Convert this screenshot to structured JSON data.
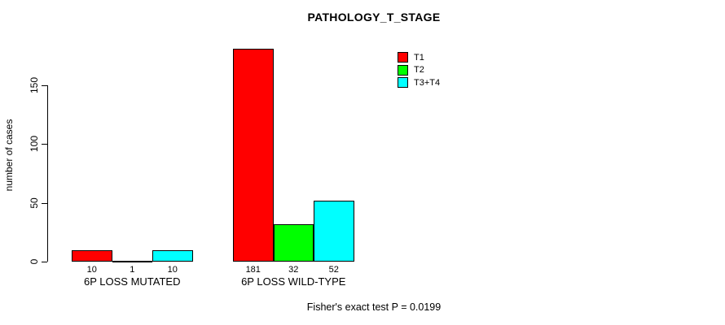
{
  "chart_data": {
    "type": "bar",
    "title": "PATHOLOGY_T_STAGE",
    "ylabel": "number of cases",
    "xlabel": "",
    "categories": [
      "6P LOSS MUTATED",
      "6P LOSS WILD-TYPE"
    ],
    "series": [
      {
        "name": "T1",
        "color": "#ff0000",
        "values": [
          10,
          181
        ]
      },
      {
        "name": "T2",
        "color": "#00ff00",
        "values": [
          1,
          32
        ]
      },
      {
        "name": "T3+T4",
        "color": "#00ffff",
        "values": [
          10,
          52
        ]
      }
    ],
    "yticks": [
      0,
      50,
      100,
      150
    ],
    "ylim": [
      0,
      150
    ],
    "grid": false,
    "legend_position": "top-right",
    "bar_border_color": "#000000",
    "background_color": "#ffffff",
    "annotation": "Fisher's exact test P = 0.0199"
  }
}
